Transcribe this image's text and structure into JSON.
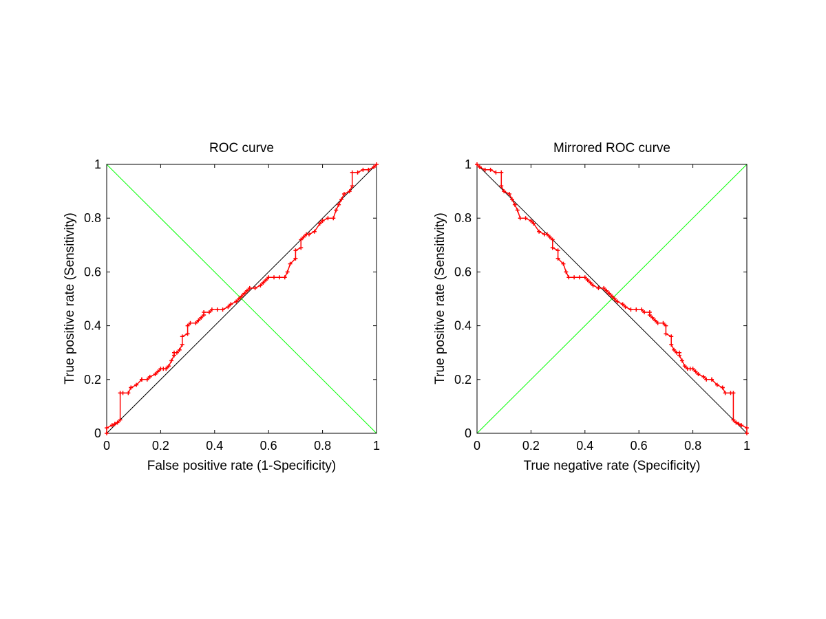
{
  "chart_data": [
    {
      "type": "line",
      "title": "ROC curve",
      "xlabel": "False positive rate (1-Specificity)",
      "ylabel": "True positive rate (Sensitivity)",
      "xlim": [
        0,
        1
      ],
      "ylim": [
        0,
        1
      ],
      "xticks": [
        "0",
        "0.2",
        "0.4",
        "0.6",
        "0.8",
        "1"
      ],
      "yticks": [
        "0",
        "0.2",
        "0.4",
        "0.6",
        "0.8",
        "1"
      ],
      "grid": false,
      "legend": "none",
      "reference_lines": [
        {
          "from": [
            0,
            0
          ],
          "to": [
            1,
            1
          ],
          "color": "#000000"
        },
        {
          "from": [
            0,
            1
          ],
          "to": [
            1,
            0
          ],
          "color": "#00ff00"
        }
      ],
      "series": [
        {
          "color": "#ff0000",
          "marker": "+",
          "x": [
            0,
            0,
            0.02,
            0.03,
            0.04,
            0.05,
            0.05,
            0.06,
            0.08,
            0.09,
            0.09,
            0.11,
            0.13,
            0.13,
            0.15,
            0.16,
            0.18,
            0.19,
            0.2,
            0.21,
            0.22,
            0.23,
            0.24,
            0.25,
            0.25,
            0.26,
            0.27,
            0.28,
            0.28,
            0.3,
            0.3,
            0.31,
            0.33,
            0.34,
            0.35,
            0.36,
            0.36,
            0.38,
            0.39,
            0.41,
            0.43,
            0.45,
            0.46,
            0.48,
            0.49,
            0.5,
            0.51,
            0.52,
            0.53,
            0.55,
            0.57,
            0.58,
            0.59,
            0.6,
            0.62,
            0.64,
            0.66,
            0.67,
            0.68,
            0.7,
            0.7,
            0.72,
            0.72,
            0.73,
            0.74,
            0.75,
            0.77,
            0.79,
            0.8,
            0.82,
            0.84,
            0.85,
            0.86,
            0.87,
            0.88,
            0.9,
            0.91,
            0.91,
            0.93,
            0.95,
            0.97,
            0.99,
            1
          ],
          "y": [
            0,
            0.02,
            0.03,
            0.035,
            0.04,
            0.05,
            0.15,
            0.15,
            0.15,
            0.17,
            0.17,
            0.18,
            0.2,
            0.2,
            0.2,
            0.21,
            0.22,
            0.23,
            0.24,
            0.24,
            0.24,
            0.25,
            0.27,
            0.29,
            0.3,
            0.3,
            0.31,
            0.33,
            0.36,
            0.37,
            0.4,
            0.41,
            0.41,
            0.42,
            0.43,
            0.44,
            0.45,
            0.45,
            0.46,
            0.46,
            0.46,
            0.47,
            0.48,
            0.49,
            0.5,
            0.51,
            0.52,
            0.53,
            0.54,
            0.54,
            0.55,
            0.56,
            0.57,
            0.58,
            0.58,
            0.58,
            0.58,
            0.6,
            0.63,
            0.65,
            0.68,
            0.69,
            0.72,
            0.73,
            0.74,
            0.74,
            0.75,
            0.78,
            0.79,
            0.8,
            0.8,
            0.83,
            0.85,
            0.87,
            0.89,
            0.9,
            0.92,
            0.97,
            0.97,
            0.98,
            0.98,
            0.99,
            1
          ]
        }
      ]
    },
    {
      "type": "line",
      "title": "Mirrored ROC curve",
      "xlabel": "True negative rate (Specificity)",
      "ylabel": "True positive rate (Sensitivity)",
      "xlim": [
        0,
        1
      ],
      "ylim": [
        0,
        1
      ],
      "xticks": [
        "0",
        "0.2",
        "0.4",
        "0.6",
        "0.8",
        "1"
      ],
      "yticks": [
        "0",
        "0.2",
        "0.4",
        "0.6",
        "0.8",
        "1"
      ],
      "grid": false,
      "legend": "none",
      "reference_lines": [
        {
          "from": [
            0,
            1
          ],
          "to": [
            1,
            0
          ],
          "color": "#000000"
        },
        {
          "from": [
            0,
            0
          ],
          "to": [
            1,
            1
          ],
          "color": "#00ff00"
        }
      ],
      "series": [
        {
          "color": "#ff0000",
          "marker": "+",
          "mirror_of_first_chart": true
        }
      ]
    }
  ]
}
